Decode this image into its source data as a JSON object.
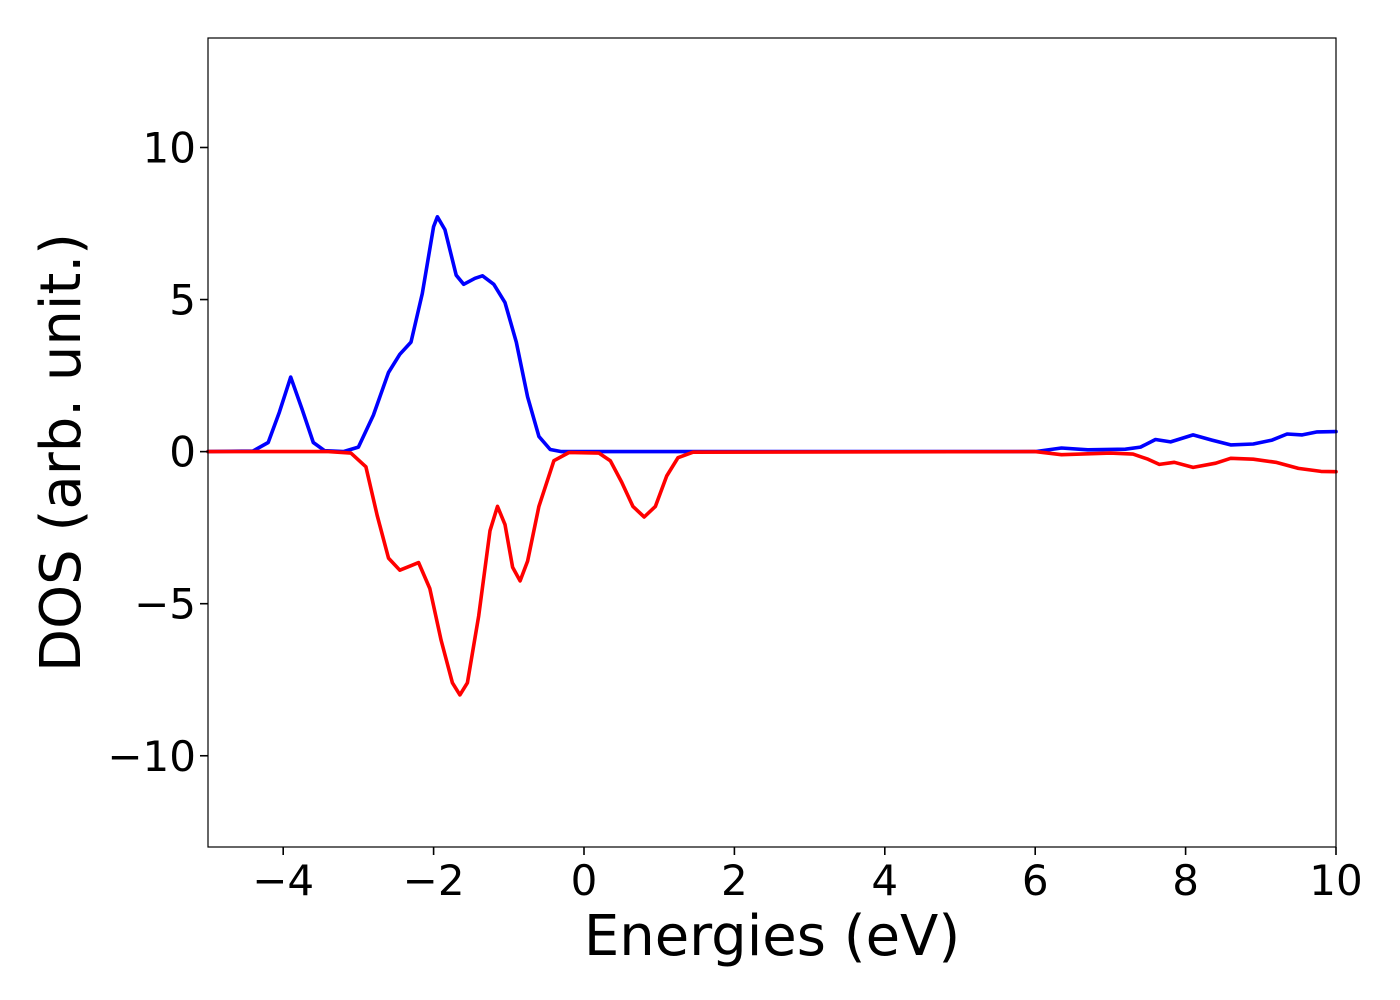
{
  "chart_data": {
    "type": "line",
    "title": "",
    "xlabel": "Energies (eV)",
    "ylabel": "DOS (arb. unit.)",
    "xlim": [
      -5,
      10
    ],
    "ylim": [
      -13,
      13.6
    ],
    "grid": false,
    "legend": "none",
    "x_ticks": [
      -4,
      -2,
      0,
      2,
      4,
      6,
      8,
      10
    ],
    "x_tick_labels": [
      "−4",
      "−2",
      "0",
      "2",
      "4",
      "6",
      "8",
      "10"
    ],
    "y_ticks": [
      10,
      5,
      0,
      -5,
      -10
    ],
    "y_tick_labels": [
      "10",
      "5",
      "0",
      "−5",
      "−10"
    ],
    "series": [
      {
        "color": "#0000ff",
        "points": [
          [
            -5.0,
            0.0
          ],
          [
            -4.4,
            0.02
          ],
          [
            -4.2,
            0.3
          ],
          [
            -4.05,
            1.3
          ],
          [
            -3.9,
            2.45
          ],
          [
            -3.75,
            1.4
          ],
          [
            -3.6,
            0.3
          ],
          [
            -3.45,
            0.03
          ],
          [
            -3.2,
            0.0
          ],
          [
            -3.0,
            0.15
          ],
          [
            -2.8,
            1.2
          ],
          [
            -2.6,
            2.6
          ],
          [
            -2.45,
            3.2
          ],
          [
            -2.3,
            3.6
          ],
          [
            -2.15,
            5.2
          ],
          [
            -2.0,
            7.4
          ],
          [
            -1.95,
            7.72
          ],
          [
            -1.85,
            7.3
          ],
          [
            -1.7,
            5.8
          ],
          [
            -1.6,
            5.5
          ],
          [
            -1.45,
            5.7
          ],
          [
            -1.35,
            5.78
          ],
          [
            -1.2,
            5.5
          ],
          [
            -1.05,
            4.9
          ],
          [
            -0.9,
            3.6
          ],
          [
            -0.75,
            1.8
          ],
          [
            -0.6,
            0.5
          ],
          [
            -0.45,
            0.07
          ],
          [
            -0.3,
            0.0
          ],
          [
            2.0,
            0.0
          ],
          [
            6.0,
            0.0
          ],
          [
            6.35,
            0.12
          ],
          [
            6.7,
            0.06
          ],
          [
            7.2,
            0.08
          ],
          [
            7.4,
            0.15
          ],
          [
            7.6,
            0.4
          ],
          [
            7.8,
            0.32
          ],
          [
            8.1,
            0.55
          ],
          [
            8.35,
            0.38
          ],
          [
            8.6,
            0.22
          ],
          [
            8.9,
            0.25
          ],
          [
            9.15,
            0.38
          ],
          [
            9.35,
            0.58
          ],
          [
            9.55,
            0.55
          ],
          [
            9.75,
            0.65
          ],
          [
            10.0,
            0.66
          ]
        ]
      },
      {
        "color": "#ff0000",
        "points": [
          [
            -5.0,
            0.0
          ],
          [
            -3.4,
            0.0
          ],
          [
            -3.1,
            -0.05
          ],
          [
            -2.9,
            -0.5
          ],
          [
            -2.75,
            -2.1
          ],
          [
            -2.6,
            -3.5
          ],
          [
            -2.45,
            -3.9
          ],
          [
            -2.3,
            -3.75
          ],
          [
            -2.2,
            -3.65
          ],
          [
            -2.05,
            -4.5
          ],
          [
            -1.9,
            -6.2
          ],
          [
            -1.75,
            -7.6
          ],
          [
            -1.65,
            -8.0
          ],
          [
            -1.55,
            -7.6
          ],
          [
            -1.4,
            -5.4
          ],
          [
            -1.25,
            -2.6
          ],
          [
            -1.15,
            -1.8
          ],
          [
            -1.05,
            -2.4
          ],
          [
            -0.95,
            -3.8
          ],
          [
            -0.85,
            -4.25
          ],
          [
            -0.75,
            -3.6
          ],
          [
            -0.6,
            -1.8
          ],
          [
            -0.4,
            -0.3
          ],
          [
            -0.2,
            -0.03
          ],
          [
            0.2,
            -0.05
          ],
          [
            0.35,
            -0.3
          ],
          [
            0.5,
            -1.0
          ],
          [
            0.65,
            -1.8
          ],
          [
            0.8,
            -2.15
          ],
          [
            0.95,
            -1.8
          ],
          [
            1.1,
            -0.8
          ],
          [
            1.25,
            -0.2
          ],
          [
            1.45,
            -0.02
          ],
          [
            6.0,
            0.0
          ],
          [
            6.35,
            -0.1
          ],
          [
            7.0,
            -0.05
          ],
          [
            7.3,
            -0.08
          ],
          [
            7.5,
            -0.25
          ],
          [
            7.65,
            -0.42
          ],
          [
            7.85,
            -0.35
          ],
          [
            8.1,
            -0.52
          ],
          [
            8.4,
            -0.38
          ],
          [
            8.6,
            -0.22
          ],
          [
            8.9,
            -0.25
          ],
          [
            9.2,
            -0.35
          ],
          [
            9.5,
            -0.55
          ],
          [
            9.8,
            -0.65
          ],
          [
            10.0,
            -0.66
          ]
        ]
      }
    ]
  }
}
